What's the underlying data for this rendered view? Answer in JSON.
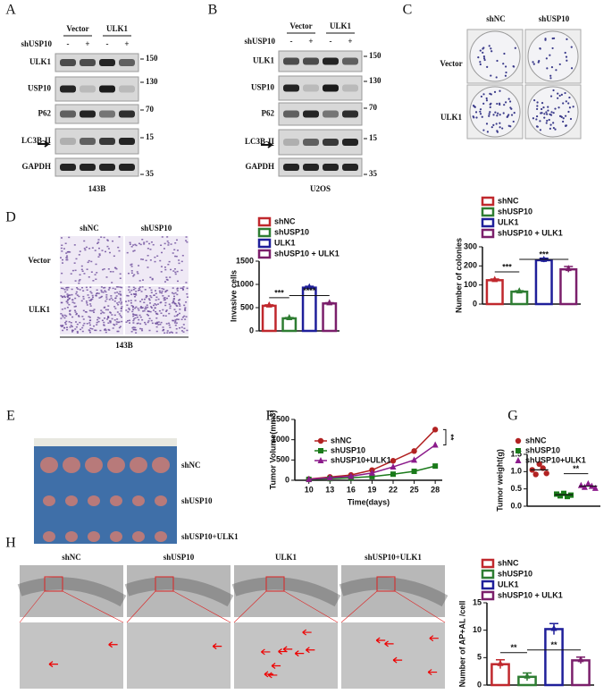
{
  "panel_labels": [
    "A",
    "B",
    "C",
    "D",
    "E",
    "F",
    "G",
    "H"
  ],
  "blots": [
    {
      "conditions": [
        "Vector",
        "ULK1"
      ],
      "treatment": "shUSP10",
      "signs": [
        "-",
        "+",
        "-",
        "+"
      ],
      "rows": [
        "ULK1",
        "USP10",
        "P62",
        "LC3B-II",
        "GAPDH"
      ],
      "markers": [
        "150",
        "130",
        "70",
        "15",
        "35"
      ],
      "cell_line": "143B"
    },
    {
      "conditions": [
        "Vector",
        "ULK1"
      ],
      "treatment": "shUSP10",
      "signs": [
        "-",
        "+",
        "-",
        "+"
      ],
      "rows": [
        "ULK1",
        "USP10",
        "P62",
        "LC3B-II",
        "GAPDH"
      ],
      "markers": [
        "150",
        "130",
        "70",
        "15",
        "35"
      ],
      "cell_line": "U2OS"
    }
  ],
  "colony": {
    "columns": [
      "shNC",
      "shUSP10"
    ],
    "rows": [
      "Vector",
      "ULK1"
    ]
  },
  "transwell": {
    "columns": [
      "shNC",
      "shUSP10"
    ],
    "rows": [
      "Vector",
      "ULK1"
    ],
    "cell_line": "143B"
  },
  "tumors": {
    "rows": [
      "shNC",
      "shUSP10",
      "shUSP10+ULK1"
    ]
  },
  "tem": {
    "columns": [
      "shNC",
      "shUSP10",
      "ULK1",
      "shUSP10+ULK1"
    ]
  },
  "chart_data": [
    {
      "type": "bar",
      "y_label": "Invasive cells",
      "ylim": [
        0,
        1500
      ],
      "yticks": [
        0,
        500,
        1000,
        1500
      ],
      "annotations": [
        "***",
        "****"
      ],
      "series": [
        {
          "name": "shNC",
          "color": "#c0282d",
          "values": [
            540
          ],
          "errors": [
            20
          ]
        },
        {
          "name": "shUSP10",
          "color": "#2e7d32",
          "values": [
            270
          ],
          "errors": [
            15
          ]
        },
        {
          "name": "ULK1",
          "color": "#1f1f9a",
          "values": [
            930
          ],
          "errors": [
            30
          ]
        },
        {
          "name": "shUSP10 + ULK1",
          "color": "#7b1f6b",
          "values": [
            590
          ],
          "errors": [
            15
          ]
        }
      ]
    },
    {
      "type": "bar",
      "y_label": "Number of colonies",
      "ylim": [
        0,
        300
      ],
      "yticks": [
        0,
        100,
        200,
        300
      ],
      "annotations": [
        "***",
        "***"
      ],
      "series": [
        {
          "name": "shNC",
          "color": "#c0282d",
          "values": [
            125
          ],
          "errors": [
            6
          ]
        },
        {
          "name": "shUSP10",
          "color": "#2e7d32",
          "values": [
            65
          ],
          "errors": [
            5
          ]
        },
        {
          "name": "ULK1",
          "color": "#1f1f9a",
          "values": [
            230
          ],
          "errors": [
            10
          ]
        },
        {
          "name": "shUSP10 + ULK1",
          "color": "#7b1f6b",
          "values": [
            182
          ],
          "errors": [
            15
          ]
        }
      ]
    },
    {
      "type": "line",
      "x_label": "Time(days)",
      "y_label": "Tumor Volume(mm3)",
      "x": [
        10,
        13,
        16,
        19,
        22,
        25,
        28
      ],
      "xlim": [
        8,
        29
      ],
      "xticks": [
        10,
        13,
        16,
        19,
        22,
        25,
        28
      ],
      "ylim": [
        0,
        1500
      ],
      "yticks": [
        0,
        500,
        1000,
        1500
      ],
      "annotations": [
        "**"
      ],
      "series": [
        {
          "name": "shNC",
          "color": "#b22222",
          "marker": "circle",
          "values": [
            30,
            80,
            130,
            250,
            480,
            720,
            1250
          ]
        },
        {
          "name": "shUSP10",
          "color": "#1a7a1a",
          "marker": "square",
          "values": [
            20,
            40,
            60,
            90,
            150,
            220,
            350
          ]
        },
        {
          "name": "shUSP10+ULK1",
          "color": "#8b1a8b",
          "marker": "triangle",
          "values": [
            25,
            60,
            100,
            180,
            330,
            500,
            870
          ]
        }
      ]
    },
    {
      "type": "dot",
      "y_label": "Tumor weight(g)",
      "ylim": [
        0,
        1.5
      ],
      "yticks": [
        {
          "value": 0,
          "label": "0.0"
        },
        {
          "value": 0.5,
          "label": "0.5"
        },
        {
          "value": 1,
          "label": "1.0"
        },
        {
          "value": 1.5,
          "label": "1.5"
        }
      ],
      "annotations": [
        "**"
      ],
      "series": [
        {
          "name": "shNC",
          "color": "#b22222",
          "marker": "circle",
          "values": [
            1.05,
            0.92,
            1.22,
            1.1,
            0.95
          ],
          "mean": 1.05
        },
        {
          "name": "shUSP10",
          "color": "#1a7a1a",
          "marker": "square",
          "values": [
            0.35,
            0.3,
            0.37,
            0.28,
            0.32
          ],
          "mean": 0.33
        },
        {
          "name": "shUSP10+ULK1",
          "color": "#8b1a8b",
          "marker": "triangle",
          "values": [
            0.6,
            0.55,
            0.65,
            0.58,
            0.52
          ],
          "mean": 0.58
        }
      ]
    },
    {
      "type": "bar",
      "y_label": "Number of AP+AL /cell",
      "ylim": [
        0,
        15
      ],
      "yticks": [
        0,
        5,
        10,
        15
      ],
      "annotations": [
        "**",
        "**"
      ],
      "series": [
        {
          "name": "shNC",
          "color": "#c0282d",
          "values": [
            3.8
          ],
          "errors": [
            0.8
          ]
        },
        {
          "name": "shUSP10",
          "color": "#2e7d32",
          "values": [
            1.5
          ],
          "errors": [
            0.7
          ]
        },
        {
          "name": "ULK1",
          "color": "#1f1f9a",
          "values": [
            10.2
          ],
          "errors": [
            1
          ]
        },
        {
          "name": "shUSP10 + ULK1",
          "color": "#7b1f6b",
          "values": [
            4.5
          ],
          "errors": [
            0.6
          ]
        }
      ]
    }
  ]
}
